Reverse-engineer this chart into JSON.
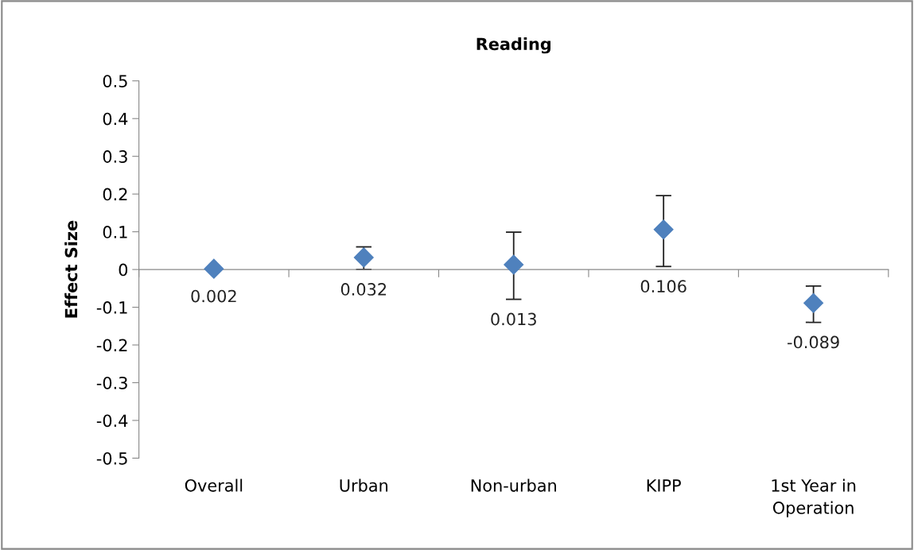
{
  "chart_data": {
    "type": "scatter",
    "title": "Reading",
    "ylabel": "Effect Size",
    "categories": [
      "Overall",
      "Urban",
      "Non-urban",
      "KIPP",
      "1st Year in\nOperation"
    ],
    "series": [
      {
        "color": "#4f81bd",
        "values": [
          0.002,
          0.032,
          0.013,
          0.106,
          -0.089
        ],
        "errors": [
          null,
          [
            0.0,
            0.06
          ],
          [
            -0.079,
            0.099
          ],
          [
            0.008,
            0.196
          ],
          [
            -0.14,
            -0.044
          ]
        ]
      }
    ],
    "ylim": [
      -0.5,
      0.5
    ],
    "yticks": [
      -0.5,
      -0.4,
      -0.3,
      -0.2,
      -0.1,
      0,
      0.1,
      0.2,
      0.3,
      0.4,
      0.5
    ],
    "marker": "diamond",
    "data_labels": true,
    "legend": false
  }
}
